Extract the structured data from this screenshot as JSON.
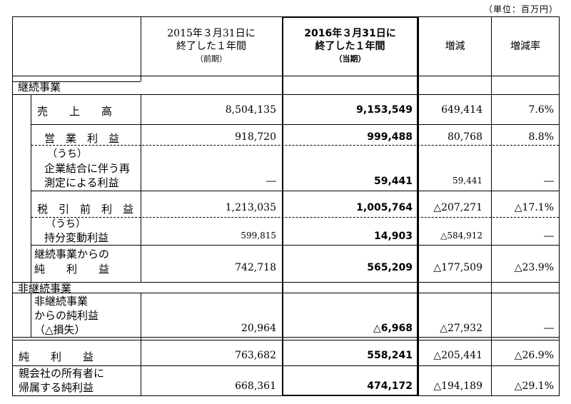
{
  "unit_note": "（単位：百万円）",
  "headers": {
    "prev_line1": "2015年３月31日に",
    "prev_line2": "終了した１年間",
    "prev_note": "（前期）",
    "curr_line1": "2016年３月31日に",
    "curr_line2": "終了した１年間",
    "curr_note": "（当期）",
    "change": "増減",
    "rate": "増減率"
  },
  "sections": {
    "continuing": "継続事業",
    "discontinued": "非継続事業"
  },
  "rows": {
    "revenue": {
      "label": "売　　上　　高",
      "prev": "8,504,135",
      "curr": "9,153,549",
      "change": "649,414",
      "rate": "7.6%"
    },
    "operating_income": {
      "label": "営　業　利　益",
      "prev": "918,720",
      "curr": "999,488",
      "change": "80,768",
      "rate": "8.8%"
    },
    "remeasurement": {
      "label_0": "（うち）",
      "label_1": "企業結合に伴う再",
      "label_2": "測定による利益",
      "prev": "―",
      "curr": "59,441",
      "change": "59,441",
      "rate": "―"
    },
    "pretax_income": {
      "label": "税　引　前　利　益",
      "prev": "1,213,035",
      "curr": "1,005,764",
      "change": "△207,271",
      "rate": "△17.1%"
    },
    "equity_change": {
      "label_0": "（うち）",
      "label_1": "持分変動利益",
      "prev": "599,815",
      "curr": "14,903",
      "change": "△584,912",
      "rate": "―"
    },
    "continuing_net": {
      "label_1": "継続事業からの",
      "label_2": "純　　利　　益",
      "prev": "742,718",
      "curr": "565,209",
      "change": "△177,509",
      "rate": "△23.9%"
    },
    "discontinued_net": {
      "label_1": "非継続事業",
      "label_2": "からの純利益",
      "label_3": "（△損失）",
      "prev": "20,964",
      "curr": "△6,968",
      "change": "△27,932",
      "rate": "―"
    },
    "net_income": {
      "label": "純　　利　　益",
      "prev": "763,682",
      "curr": "558,241",
      "change": "△205,441",
      "rate": "△26.9%"
    },
    "owners_net": {
      "label_1": "親会社の所有者に",
      "label_2": "帰属する純利益",
      "prev": "668,361",
      "curr": "474,172",
      "change": "△194,189",
      "rate": "△29.1%"
    }
  }
}
